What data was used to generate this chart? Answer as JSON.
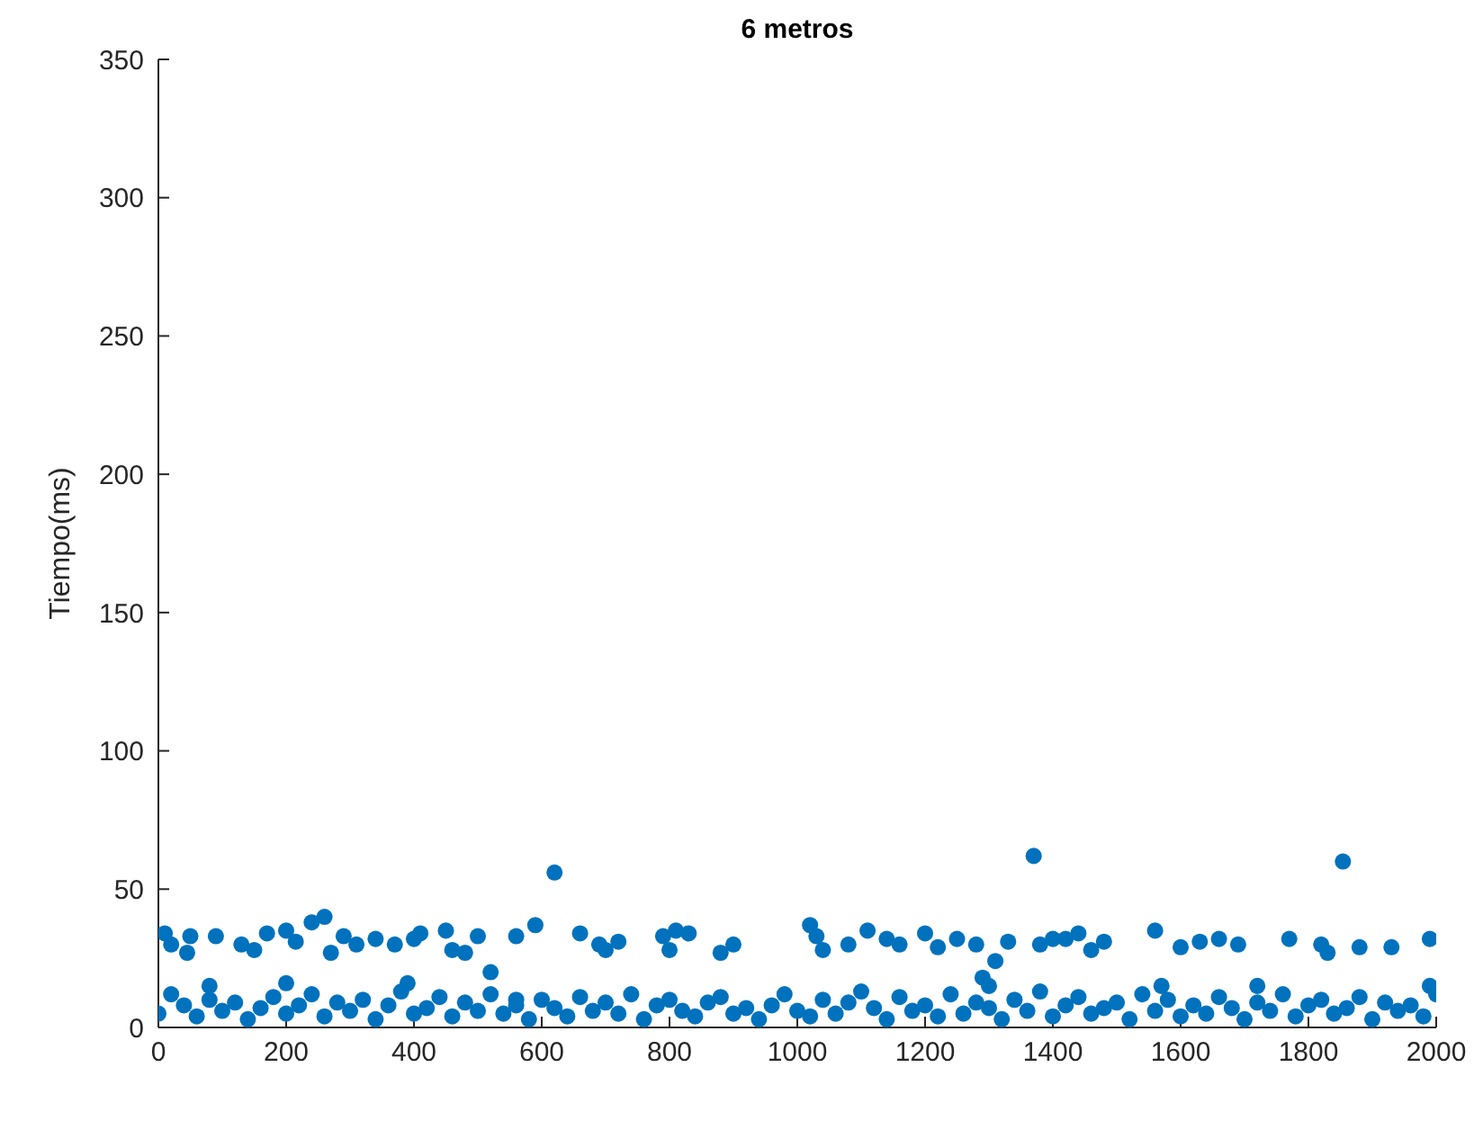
{
  "chart_data": {
    "type": "scatter",
    "title": "6 metros",
    "ylabel": "Tiempo(ms)",
    "xlim": [
      0,
      2000
    ],
    "xticks": [
      0,
      200,
      400,
      600,
      800,
      1000,
      1200,
      1400,
      1600,
      1800,
      2000
    ],
    "ylim": [
      0,
      350
    ],
    "yticks": [
      0,
      50,
      100,
      150,
      200,
      250,
      300,
      350
    ],
    "grid": false,
    "marker": "circle",
    "legend": false,
    "series": [
      {
        "color": "#0072bd",
        "x": [
          10,
          20,
          45,
          50,
          90,
          130,
          150,
          170,
          200,
          215,
          240,
          260,
          270,
          290,
          310,
          340,
          370,
          400,
          410,
          450,
          460,
          480,
          500,
          520,
          560,
          590,
          620,
          660,
          690,
          700,
          720,
          790,
          800,
          810,
          830,
          880,
          900,
          1020,
          1030,
          1040,
          1080,
          1110,
          1140,
          1160,
          1200,
          1220,
          1250,
          1280,
          1310,
          1330,
          1370,
          1380,
          1400,
          1420,
          1440,
          1460,
          1480,
          1560,
          1600,
          1630,
          1660,
          1690,
          1770,
          1820,
          1830,
          1854,
          1880,
          1930,
          1990,
          80,
          200,
          390,
          560,
          1290,
          1300,
          1570,
          1720,
          1990,
          0,
          20,
          40,
          60,
          80,
          100,
          120,
          140,
          160,
          180,
          200,
          220,
          240,
          260,
          280,
          300,
          320,
          340,
          360,
          380,
          400,
          420,
          440,
          460,
          480,
          500,
          520,
          540,
          560,
          580,
          600,
          620,
          640,
          660,
          680,
          700,
          720,
          740,
          760,
          780,
          800,
          820,
          840,
          860,
          880,
          900,
          920,
          940,
          960,
          980,
          1000,
          1020,
          1040,
          1060,
          1080,
          1100,
          1120,
          1140,
          1160,
          1180,
          1200,
          1220,
          1240,
          1260,
          1280,
          1300,
          1320,
          1340,
          1360,
          1380,
          1400,
          1420,
          1440,
          1460,
          1480,
          1500,
          1520,
          1540,
          1560,
          1580,
          1600,
          1620,
          1640,
          1660,
          1680,
          1700,
          1720,
          1740,
          1760,
          1780,
          1800,
          1820,
          1840,
          1860,
          1880,
          1900,
          1920,
          1940,
          1960,
          1980,
          2000
        ],
        "values": [
          34,
          30,
          27,
          33,
          33,
          30,
          28,
          34,
          35,
          31,
          38,
          40,
          27,
          33,
          30,
          32,
          30,
          32,
          34,
          35,
          28,
          27,
          33,
          20,
          33,
          37,
          56,
          34,
          30,
          28,
          31,
          33,
          28,
          35,
          34,
          27,
          30,
          37,
          33,
          28,
          30,
          35,
          32,
          30,
          34,
          29,
          32,
          30,
          24,
          31,
          62,
          30,
          32,
          32,
          34,
          28,
          31,
          35,
          29,
          31,
          32,
          30,
          32,
          30,
          27,
          60,
          29,
          29,
          32,
          15,
          16,
          16,
          10,
          18,
          15,
          15,
          15,
          15,
          5,
          12,
          8,
          4,
          10,
          6,
          9,
          3,
          7,
          11,
          5,
          8,
          12,
          4,
          9,
          6,
          10,
          3,
          8,
          13,
          5,
          7,
          11,
          4,
          9,
          6,
          12,
          5,
          8,
          3,
          10,
          7,
          4,
          11,
          6,
          9,
          5,
          12,
          3,
          8,
          10,
          6,
          4,
          9,
          11,
          5,
          7,
          3,
          8,
          12,
          6,
          4,
          10,
          5,
          9,
          13,
          7,
          3,
          11,
          6,
          8,
          4,
          12,
          5,
          9,
          7,
          3,
          10,
          6,
          13,
          4,
          8,
          11,
          5,
          7,
          9,
          3,
          12,
          6,
          10,
          4,
          8,
          5,
          11,
          7,
          3,
          9,
          6,
          12,
          4,
          8,
          10,
          5,
          7,
          11,
          3,
          9,
          6,
          8,
          4,
          12
        ]
      }
    ]
  }
}
